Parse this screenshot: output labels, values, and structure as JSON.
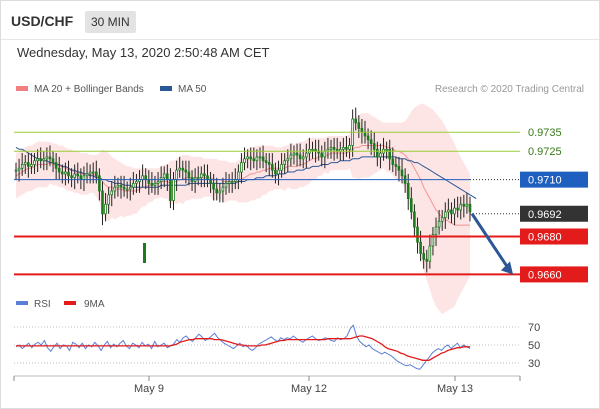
{
  "header": {
    "symbol": "USD/CHF",
    "timeframe": "30 MIN",
    "datetime": "Wednesday, May 13, 2020 2:50:48 AM CET"
  },
  "legend": {
    "ma20_label": "MA 20 + Bollinger Bands",
    "ma50_label": "MA 50",
    "credit": "Research © 2020 Trading Central"
  },
  "rsi_legend": {
    "rsi_label": "RSI",
    "ma_label": "9MA"
  },
  "colors": {
    "bollinger": "#f08080",
    "ma50": "#2b5797",
    "resistance_green": "#9acd32",
    "support_red": "#e31b1b",
    "pivot_blue": "#1f5fbf",
    "current": "#333333",
    "arrow": "#2b5797",
    "rsi": "#5b7fd6",
    "rsi_ma": "#e31b1b"
  },
  "chart_data": [
    {
      "type": "candlestick",
      "title": "USD/CHF 30 MIN",
      "x_ticks": [
        "May 9",
        "May 12",
        "May 13"
      ],
      "levels": [
        {
          "value": 0.9735,
          "label": "0.9735",
          "kind": "resistance"
        },
        {
          "value": 0.9725,
          "label": "0.9725",
          "kind": "resistance"
        },
        {
          "value": 0.971,
          "label": "0.9710",
          "kind": "pivot"
        },
        {
          "value": 0.9692,
          "label": "0.9692",
          "kind": "current"
        },
        {
          "value": 0.968,
          "label": "0.9680",
          "kind": "support"
        },
        {
          "value": 0.966,
          "label": "0.9660",
          "kind": "support"
        }
      ],
      "ylim": [
        0.9656,
        0.9752
      ],
      "series": [
        {
          "name": "MA 20 + Bollinger Bands",
          "kind": "bollinger"
        },
        {
          "name": "MA 50",
          "kind": "moving_average"
        }
      ],
      "projection": {
        "from": 0.9692,
        "to": 0.966,
        "direction": "down"
      },
      "closes": [
        0.9715,
        0.9716,
        0.9718,
        0.9719,
        0.9717,
        0.9718,
        0.972,
        0.9721,
        0.972,
        0.9721,
        0.9722,
        0.9721,
        0.9719,
        0.9716,
        0.9714,
        0.9713,
        0.9714,
        0.9712,
        0.9711,
        0.9713,
        0.9712,
        0.971,
        0.9712,
        0.9713,
        0.9714,
        0.9714,
        0.9712,
        0.9704,
        0.9692,
        0.9697,
        0.9702,
        0.9704,
        0.9706,
        0.9707,
        0.9706,
        0.9705,
        0.9705,
        0.9706,
        0.9708,
        0.9709,
        0.971,
        0.9712,
        0.971,
        0.9708,
        0.9707,
        0.9708,
        0.9709,
        0.9711,
        0.9713,
        0.971,
        0.9699,
        0.971,
        0.9715,
        0.9716,
        0.9715,
        0.9714,
        0.9711,
        0.9709,
        0.9711,
        0.9711,
        0.9713,
        0.9712,
        0.971,
        0.9708,
        0.9705,
        0.9703,
        0.9704,
        0.9706,
        0.9708,
        0.9709,
        0.9709,
        0.971,
        0.9714,
        0.9719,
        0.9721,
        0.9722,
        0.9721,
        0.972,
        0.9722,
        0.9722,
        0.972,
        0.9719,
        0.9718,
        0.9715,
        0.9713,
        0.9715,
        0.9718,
        0.972,
        0.9721,
        0.9723,
        0.9724,
        0.9723,
        0.9721,
        0.9722,
        0.9724,
        0.9726,
        0.9726,
        0.9725,
        0.9724,
        0.9722,
        0.9725,
        0.9726,
        0.9727,
        0.9726,
        0.9725,
        0.9726,
        0.9727,
        0.9726,
        0.9728,
        0.9742,
        0.974,
        0.9737,
        0.9735,
        0.9733,
        0.9731,
        0.9729,
        0.9726,
        0.9722,
        0.9724,
        0.9726,
        0.9726,
        0.9721,
        0.9718,
        0.9717,
        0.9715,
        0.9712,
        0.9708,
        0.97,
        0.9693,
        0.9685,
        0.9677,
        0.9671,
        0.9668,
        0.9667,
        0.9675,
        0.9681,
        0.9685,
        0.9688,
        0.969,
        0.9693,
        0.9694,
        0.9692,
        0.9695,
        0.9694,
        0.9697,
        0.9696,
        0.9697,
        0.9693
      ],
      "ma20": [
        0.9712,
        0.9713,
        0.9714,
        0.9715,
        0.9716,
        0.9716,
        0.9717,
        0.9718,
        0.9718,
        0.9718,
        0.9718,
        0.9719,
        0.9718,
        0.9718,
        0.9717,
        0.9717,
        0.9716,
        0.9715,
        0.9715,
        0.9714,
        0.9714,
        0.9713,
        0.9713,
        0.9713,
        0.9713,
        0.9713,
        0.9712,
        0.9711,
        0.9709,
        0.9707,
        0.9706,
        0.9706,
        0.9705,
        0.9705,
        0.9705,
        0.9704,
        0.9704,
        0.9704,
        0.9704,
        0.9704,
        0.9705,
        0.9706,
        0.9706,
        0.9707,
        0.9707,
        0.9708,
        0.9708,
        0.9709,
        0.9709,
        0.9709,
        0.9708,
        0.9709,
        0.9709,
        0.971,
        0.971,
        0.9711,
        0.9711,
        0.9711,
        0.9711,
        0.9711,
        0.9711,
        0.9711,
        0.9711,
        0.9711,
        0.971,
        0.971,
        0.971,
        0.9709,
        0.9709,
        0.9709,
        0.9709,
        0.9709,
        0.9709,
        0.971,
        0.9711,
        0.9712,
        0.9713,
        0.9713,
        0.9714,
        0.9714,
        0.9715,
        0.9715,
        0.9716,
        0.9716,
        0.9716,
        0.9716,
        0.9716,
        0.9716,
        0.9717,
        0.9717,
        0.9717,
        0.9717,
        0.9718,
        0.9718,
        0.9719,
        0.972,
        0.9721,
        0.9721,
        0.9722,
        0.9722,
        0.9723,
        0.9723,
        0.9724,
        0.9724,
        0.9724,
        0.9724,
        0.9724,
        0.9724,
        0.9725,
        0.9726,
        0.9727,
        0.9727,
        0.9728,
        0.9728,
        0.9728,
        0.9728,
        0.9728,
        0.9728,
        0.9728,
        0.9728,
        0.9727,
        0.9727,
        0.9726,
        0.9725,
        0.9725,
        0.9724,
        0.9723,
        0.9721,
        0.9719,
        0.9716,
        0.9713,
        0.971,
        0.9706,
        0.9703,
        0.97,
        0.9697,
        0.9694,
        0.9692,
        0.969,
        0.9689,
        0.9688,
        0.9687,
        0.9686,
        0.9686,
        0.9686,
        0.9686,
        0.9686,
        0.9686
      ],
      "bb_upper": [
        0.9724,
        0.9725,
        0.9726,
        0.9727,
        0.9728,
        0.9728,
        0.9729,
        0.973,
        0.973,
        0.973,
        0.973,
        0.973,
        0.9729,
        0.9729,
        0.9728,
        0.9728,
        0.9727,
        0.9726,
        0.9726,
        0.9725,
        0.9725,
        0.9724,
        0.9724,
        0.9724,
        0.9723,
        0.9723,
        0.9723,
        0.9724,
        0.9726,
        0.9725,
        0.9724,
        0.9722,
        0.9721,
        0.972,
        0.9719,
        0.9718,
        0.9717,
        0.9717,
        0.9716,
        0.9716,
        0.9716,
        0.9716,
        0.9716,
        0.9716,
        0.9716,
        0.9716,
        0.9716,
        0.9717,
        0.9718,
        0.9718,
        0.972,
        0.972,
        0.9721,
        0.9722,
        0.9723,
        0.9723,
        0.9723,
        0.9722,
        0.9722,
        0.9722,
        0.9722,
        0.9721,
        0.9721,
        0.9721,
        0.9721,
        0.9721,
        0.972,
        0.972,
        0.972,
        0.9719,
        0.9719,
        0.9719,
        0.972,
        0.9722,
        0.9724,
        0.9726,
        0.9727,
        0.9727,
        0.9728,
        0.9728,
        0.9728,
        0.9728,
        0.9728,
        0.9728,
        0.9727,
        0.9727,
        0.9727,
        0.9728,
        0.9728,
        0.9729,
        0.9729,
        0.9729,
        0.973,
        0.973,
        0.9731,
        0.9732,
        0.9732,
        0.9732,
        0.9732,
        0.9732,
        0.9732,
        0.9733,
        0.9733,
        0.9733,
        0.9733,
        0.9733,
        0.9733,
        0.9733,
        0.9734,
        0.9741,
        0.9743,
        0.9744,
        0.9745,
        0.9745,
        0.9745,
        0.9744,
        0.9743,
        0.9742,
        0.9741,
        0.974,
        0.974,
        0.974,
        0.974,
        0.974,
        0.974,
        0.974,
        0.9741,
        0.9743,
        0.9746,
        0.9748,
        0.9749,
        0.975,
        0.975,
        0.9749,
        0.9748,
        0.9747,
        0.9745,
        0.9743,
        0.9741,
        0.9738,
        0.9735,
        0.9732,
        0.9729,
        0.9725,
        0.9722,
        0.9719,
        0.9716,
        0.9713
      ],
      "bb_lower": [
        0.97,
        0.9701,
        0.9702,
        0.9703,
        0.9704,
        0.9704,
        0.9705,
        0.9706,
        0.9706,
        0.9706,
        0.9706,
        0.9708,
        0.9707,
        0.9707,
        0.9706,
        0.9706,
        0.9705,
        0.9704,
        0.9704,
        0.9703,
        0.9703,
        0.9702,
        0.9702,
        0.9702,
        0.9703,
        0.9703,
        0.9701,
        0.9698,
        0.9692,
        0.9689,
        0.9688,
        0.969,
        0.9689,
        0.969,
        0.9691,
        0.969,
        0.9691,
        0.9691,
        0.9692,
        0.9692,
        0.9694,
        0.9696,
        0.9696,
        0.9698,
        0.9698,
        0.97,
        0.97,
        0.9701,
        0.97,
        0.97,
        0.9696,
        0.9698,
        0.9697,
        0.9698,
        0.9697,
        0.9699,
        0.9699,
        0.97,
        0.97,
        0.97,
        0.97,
        0.9701,
        0.9701,
        0.9701,
        0.9699,
        0.9699,
        0.97,
        0.9698,
        0.9698,
        0.9699,
        0.9699,
        0.9699,
        0.9698,
        0.9698,
        0.9698,
        0.9698,
        0.9699,
        0.9699,
        0.97,
        0.97,
        0.9702,
        0.9702,
        0.9704,
        0.9704,
        0.9705,
        0.9705,
        0.9705,
        0.9704,
        0.9706,
        0.9705,
        0.9705,
        0.9705,
        0.9706,
        0.9706,
        0.9707,
        0.9708,
        0.971,
        0.971,
        0.9712,
        0.9712,
        0.9714,
        0.9713,
        0.9715,
        0.9715,
        0.9715,
        0.9715,
        0.9715,
        0.9715,
        0.9716,
        0.9711,
        0.9711,
        0.971,
        0.9711,
        0.9711,
        0.9711,
        0.9712,
        0.9713,
        0.9714,
        0.9715,
        0.9716,
        0.9714,
        0.9714,
        0.9712,
        0.971,
        0.971,
        0.9708,
        0.9705,
        0.9699,
        0.9692,
        0.9684,
        0.9677,
        0.967,
        0.9662,
        0.9657,
        0.9652,
        0.9647,
        0.9643,
        0.9641,
        0.9639,
        0.964,
        0.9641,
        0.9642,
        0.9643,
        0.9647,
        0.965,
        0.9653,
        0.9656,
        0.9659
      ],
      "ma50": [
        0.9727,
        0.9726,
        0.9726,
        0.9725,
        0.9724,
        0.9723,
        0.9722,
        0.9721,
        0.9721,
        0.972,
        0.972,
        0.9719,
        0.9719,
        0.9718,
        0.9718,
        0.9717,
        0.9717,
        0.9716,
        0.9715,
        0.9715,
        0.9714,
        0.9714,
        0.9713,
        0.9713,
        0.9712,
        0.9712,
        0.9711,
        0.9711,
        0.971,
        0.971,
        0.9709,
        0.9709,
        0.9708,
        0.9708,
        0.9708,
        0.9707,
        0.9707,
        0.9707,
        0.9706,
        0.9706,
        0.9706,
        0.9706,
        0.9706,
        0.9706,
        0.9706,
        0.9706,
        0.9706,
        0.9707,
        0.9707,
        0.9707,
        0.9707,
        0.9707,
        0.9707,
        0.9707,
        0.9707,
        0.9707,
        0.9708,
        0.9708,
        0.9708,
        0.9708,
        0.9708,
        0.9708,
        0.9708,
        0.9708,
        0.9708,
        0.9708,
        0.9708,
        0.9708,
        0.9708,
        0.9708,
        0.9708,
        0.9708,
        0.9709,
        0.9709,
        0.9709,
        0.971,
        0.971,
        0.971,
        0.9711,
        0.9711,
        0.9711,
        0.9712,
        0.9712,
        0.9712,
        0.9712,
        0.9713,
        0.9713,
        0.9713,
        0.9714,
        0.9714,
        0.9714,
        0.9715,
        0.9715,
        0.9715,
        0.9716,
        0.9716,
        0.9717,
        0.9717,
        0.9717,
        0.9718,
        0.9718,
        0.9718,
        0.9719,
        0.9719,
        0.9719,
        0.972,
        0.972,
        0.972,
        0.972,
        0.9721,
        0.9721,
        0.9721,
        0.9722,
        0.9722,
        0.9722,
        0.9722,
        0.9722,
        0.9722,
        0.9722,
        0.9722,
        0.9722,
        0.9722,
        0.9722,
        0.9722,
        0.9721,
        0.9721,
        0.9721,
        0.972,
        0.972,
        0.9719,
        0.9719,
        0.9718,
        0.9717,
        0.9716,
        0.9715,
        0.9714,
        0.9713,
        0.9712,
        0.9711,
        0.971,
        0.9709,
        0.9708,
        0.9707,
        0.9706,
        0.9705,
        0.9704,
        0.9703,
        0.9702,
        0.9701,
        0.97
      ]
    },
    {
      "type": "line",
      "title": "RSI",
      "yticks": [
        70,
        50,
        30
      ],
      "ylim": [
        20,
        80
      ],
      "series": [
        {
          "name": "RSI",
          "values": [
            48,
            50,
            46,
            49,
            52,
            47,
            51,
            53,
            50,
            55,
            47,
            43,
            48,
            52,
            46,
            50,
            49,
            44,
            53,
            51,
            47,
            52,
            46,
            50,
            48,
            53,
            49,
            44,
            50,
            54,
            47,
            51,
            48,
            52,
            55,
            49,
            46,
            52,
            50,
            47,
            53,
            49,
            51,
            46,
            54,
            48,
            50,
            52,
            47,
            49,
            51,
            56,
            53,
            58,
            60,
            56,
            54,
            58,
            62,
            59,
            55,
            57,
            60,
            63,
            58,
            55,
            52,
            50,
            48,
            46,
            49,
            52,
            48,
            50,
            46,
            44,
            47,
            51,
            53,
            55,
            57,
            59,
            56,
            54,
            58,
            56,
            58,
            57,
            60,
            57,
            55,
            53,
            56,
            58,
            60,
            57,
            55,
            56,
            58,
            57,
            55,
            54,
            58,
            56,
            57,
            60,
            68,
            72,
            60,
            54,
            51,
            48,
            50,
            46,
            44,
            42,
            40,
            42,
            40,
            38,
            35,
            32,
            30,
            28,
            27,
            28,
            26,
            24,
            23,
            27,
            32,
            36,
            41,
            44,
            46,
            44,
            48,
            50,
            46,
            49,
            52,
            47,
            50,
            48,
            46
          ]
        },
        {
          "name": "9MA",
          "values": [
            49,
            49,
            49,
            49,
            49,
            49,
            49,
            49,
            49,
            49,
            49,
            49,
            49,
            49,
            49,
            49,
            49,
            49,
            49,
            49,
            49,
            49,
            49,
            49,
            49,
            49,
            49,
            49,
            49,
            49,
            49,
            49,
            49,
            49,
            49,
            49,
            49,
            49,
            49,
            49,
            49,
            49,
            49,
            49,
            49,
            49,
            49,
            49,
            49,
            49,
            50,
            51,
            53,
            54,
            55,
            56,
            56,
            57,
            57,
            57,
            57,
            57,
            57,
            56,
            56,
            56,
            55,
            54,
            53,
            52,
            51,
            50,
            50,
            49,
            49,
            49,
            49,
            49,
            50,
            50,
            51,
            52,
            53,
            54,
            55,
            55,
            56,
            56,
            56,
            56,
            56,
            56,
            56,
            56,
            56,
            56,
            56,
            56,
            56,
            57,
            57,
            57,
            57,
            57,
            57,
            57,
            57,
            58,
            59,
            60,
            60,
            59,
            58,
            57,
            55,
            53,
            51,
            48,
            46,
            45,
            44,
            43,
            41,
            40,
            38,
            37,
            36,
            35,
            34,
            33,
            33,
            33,
            35,
            37,
            39,
            41,
            42,
            44,
            45,
            46,
            47,
            47,
            48,
            48,
            48
          ]
        }
      ]
    }
  ]
}
